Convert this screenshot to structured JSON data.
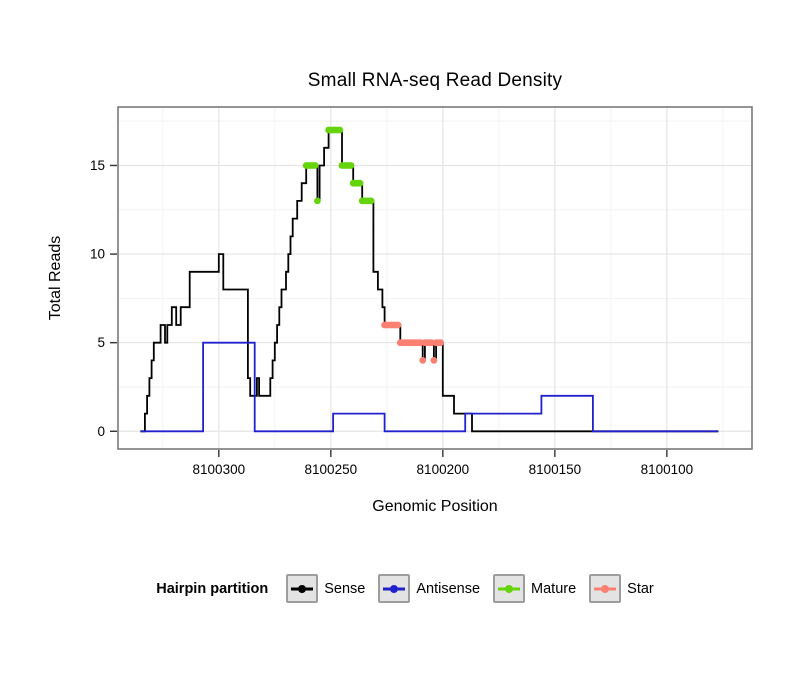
{
  "title": "Small RNA-seq Read Density",
  "axes": {
    "x_label": "Genomic Position",
    "y_label": "Total Reads"
  },
  "legend": {
    "title": "Hairpin partition",
    "items": [
      {
        "label": "Sense"
      },
      {
        "label": "Antisense"
      },
      {
        "label": "Mature"
      },
      {
        "label": "Star"
      }
    ]
  },
  "chart_data": {
    "type": "line",
    "title": "Small RNA-seq Read Density",
    "xlabel": "Genomic Position",
    "ylabel": "Total Reads",
    "grid": true,
    "legend_position": "bottom",
    "x_axis": {
      "reversed": true,
      "range_left": 8100345,
      "range_right": 8100062,
      "ticks": [
        8100300,
        8100250,
        8100200,
        8100150,
        8100100
      ],
      "minor": [
        8100325,
        8100275,
        8100225,
        8100175,
        8100125,
        8100075
      ]
    },
    "y_axis": {
      "range": [
        -1,
        18.3
      ],
      "ticks": [
        0,
        5,
        10,
        15
      ],
      "minor": [
        2.5,
        7.5,
        12.5,
        17.5
      ]
    },
    "series": [
      {
        "name": "Sense",
        "kind": "step",
        "color": "#000000",
        "steps": [
          [
            8100335,
            0
          ],
          [
            8100333,
            1
          ],
          [
            8100332,
            2
          ],
          [
            8100331,
            3
          ],
          [
            8100330,
            4
          ],
          [
            8100329,
            5
          ],
          [
            8100326,
            6
          ],
          [
            8100324,
            5
          ],
          [
            8100323,
            6
          ],
          [
            8100321,
            7
          ],
          [
            8100319,
            6
          ],
          [
            8100317,
            7
          ],
          [
            8100313,
            9
          ],
          [
            8100300,
            10
          ],
          [
            8100298,
            8
          ],
          [
            8100287,
            3
          ],
          [
            8100286,
            2
          ],
          [
            8100283,
            3
          ],
          [
            8100282,
            2
          ],
          [
            8100277,
            3
          ],
          [
            8100276,
            4
          ],
          [
            8100275,
            5
          ],
          [
            8100274,
            6
          ],
          [
            8100273,
            7
          ],
          [
            8100272,
            8
          ],
          [
            8100270,
            9
          ],
          [
            8100269,
            10
          ],
          [
            8100268,
            11
          ],
          [
            8100267,
            12
          ],
          [
            8100265,
            13
          ],
          [
            8100263,
            14
          ],
          [
            8100261,
            15
          ],
          [
            8100256,
            13
          ],
          [
            8100255,
            15
          ],
          [
            8100253,
            16
          ],
          [
            8100251,
            17
          ],
          [
            8100245,
            15
          ],
          [
            8100240,
            14
          ],
          [
            8100236,
            13
          ],
          [
            8100231,
            9
          ],
          [
            8100229,
            8
          ],
          [
            8100227,
            7
          ],
          [
            8100226,
            6
          ],
          [
            8100219,
            5
          ],
          [
            8100209,
            4
          ],
          [
            8100208,
            5
          ],
          [
            8100204,
            4
          ],
          [
            8100203,
            5
          ],
          [
            8100200,
            2
          ],
          [
            8100195,
            1
          ],
          [
            8100187,
            0
          ],
          [
            8100077,
            0
          ]
        ]
      },
      {
        "name": "Antisense",
        "kind": "step",
        "color": "#2222CC",
        "steps": [
          [
            8100335,
            0
          ],
          [
            8100307,
            5
          ],
          [
            8100284,
            0
          ],
          [
            8100249,
            1
          ],
          [
            8100226,
            0
          ],
          [
            8100190,
            1
          ],
          [
            8100156,
            2
          ],
          [
            8100133,
            0
          ],
          [
            8100077,
            0
          ]
        ]
      },
      {
        "name": "Mature",
        "kind": "points",
        "color": "#66D40A",
        "points": [
          [
            8100261,
            15
          ],
          [
            8100260,
            15
          ],
          [
            8100259,
            15
          ],
          [
            8100258,
            15
          ],
          [
            8100257,
            15
          ],
          [
            8100256,
            13
          ],
          [
            8100251,
            17
          ],
          [
            8100250,
            17
          ],
          [
            8100249,
            17
          ],
          [
            8100248,
            17
          ],
          [
            8100247,
            17
          ],
          [
            8100246,
            17
          ],
          [
            8100245,
            15
          ],
          [
            8100244,
            15
          ],
          [
            8100243,
            15
          ],
          [
            8100242,
            15
          ],
          [
            8100241,
            15
          ],
          [
            8100240,
            14
          ],
          [
            8100239,
            14
          ],
          [
            8100238,
            14
          ],
          [
            8100237,
            14
          ],
          [
            8100236,
            13
          ],
          [
            8100235,
            13
          ],
          [
            8100234,
            13
          ],
          [
            8100233,
            13
          ],
          [
            8100232,
            13
          ]
        ]
      },
      {
        "name": "Star",
        "kind": "points",
        "color": "#FA8072",
        "points": [
          [
            8100226,
            6
          ],
          [
            8100225,
            6
          ],
          [
            8100224,
            6
          ],
          [
            8100223,
            6
          ],
          [
            8100222,
            6
          ],
          [
            8100221,
            6
          ],
          [
            8100220,
            6
          ],
          [
            8100219,
            5
          ],
          [
            8100218,
            5
          ],
          [
            8100217,
            5
          ],
          [
            8100216,
            5
          ],
          [
            8100215,
            5
          ],
          [
            8100214,
            5
          ],
          [
            8100213,
            5
          ],
          [
            8100212,
            5
          ],
          [
            8100211,
            5
          ],
          [
            8100210,
            5
          ],
          [
            8100209,
            4
          ],
          [
            8100208,
            5
          ],
          [
            8100207,
            5
          ],
          [
            8100206,
            5
          ],
          [
            8100205,
            5
          ],
          [
            8100204,
            4
          ],
          [
            8100203,
            5
          ],
          [
            8100202,
            5
          ],
          [
            8100201,
            5
          ]
        ]
      }
    ]
  }
}
